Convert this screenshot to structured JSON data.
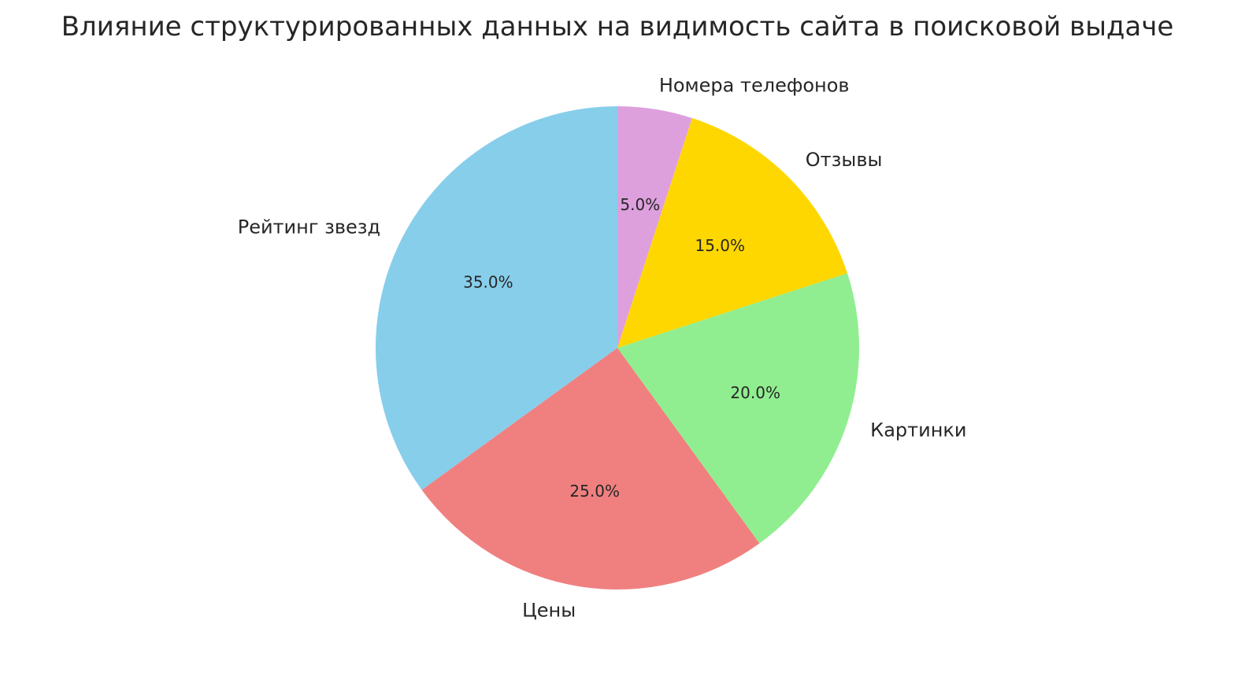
{
  "chart_data": {
    "type": "pie",
    "title": "Влияние структурированных данных на видимость сайта в поисковой выдаче",
    "start_angle_deg": 90,
    "direction": "counterclockwise",
    "slices": [
      {
        "label": "Рейтинг звезд",
        "value": 35,
        "pct_label": "35.0%",
        "color": "#87CEEB"
      },
      {
        "label": "Цены",
        "value": 25,
        "pct_label": "25.0%",
        "color": "#F08080"
      },
      {
        "label": "Картинки",
        "value": 20,
        "pct_label": "20.0%",
        "color": "#90EE90"
      },
      {
        "label": "Отзывы",
        "value": 15,
        "pct_label": "15.0%",
        "color": "#FFD700"
      },
      {
        "label": "Номера телефонов",
        "value": 5,
        "pct_label": "5.0%",
        "color": "#DDA0DD"
      }
    ]
  }
}
